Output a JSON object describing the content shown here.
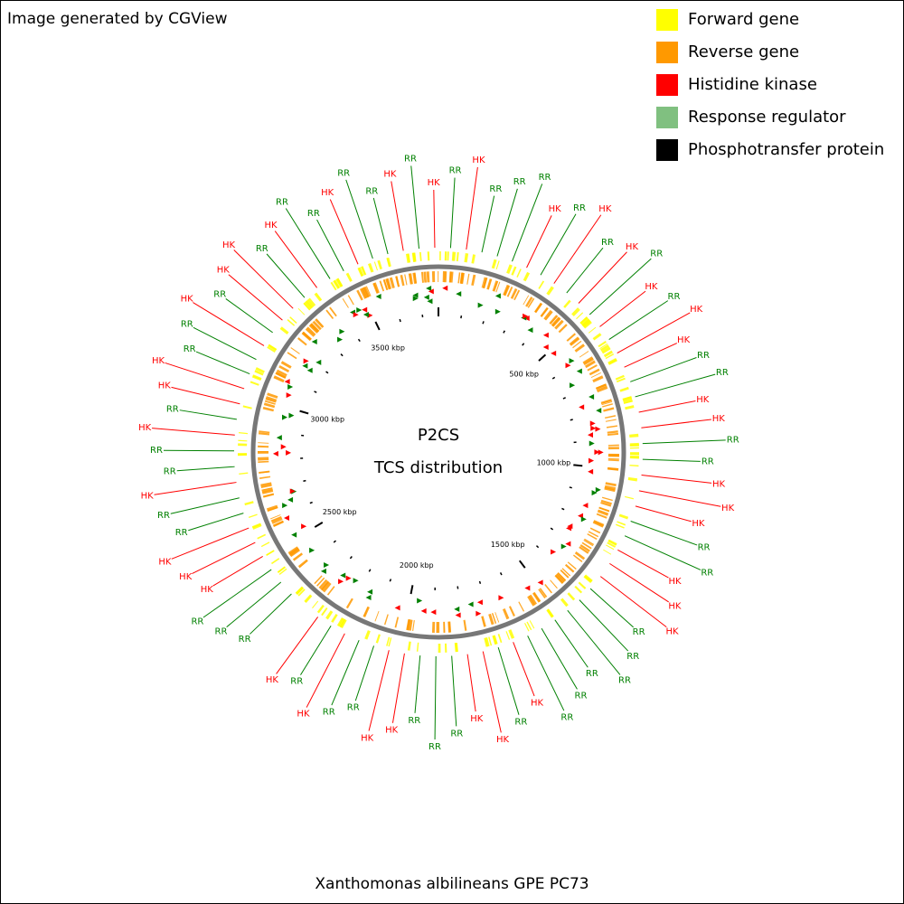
{
  "header": {
    "credit": "Image generated by CGView"
  },
  "legend": [
    {
      "label": "Forward gene",
      "color": "#ffff00"
    },
    {
      "label": "Reverse gene",
      "color": "#ff9900"
    },
    {
      "label": "Histidine kinase",
      "color": "#ff0000"
    },
    {
      "label": "Response regulator",
      "color": "#80c080"
    },
    {
      "label": "Phosphotransfer protein",
      "color": "#000000"
    }
  ],
  "map": {
    "title": "P2CS",
    "subtitle": "TCS distribution",
    "ticks": [
      "500 kbp",
      "1000 kbp",
      "1500 kbp",
      "2000 kbp",
      "2500 kbp",
      "3000 kbp",
      "3500 kbp"
    ],
    "labels": [
      "RR",
      "RR",
      "RR",
      "HK",
      "HK",
      "HK",
      "RR",
      "RR",
      "HK",
      "RR",
      "RR",
      "HK",
      "RR",
      "HK",
      "HK",
      "RR",
      "RR",
      "HK",
      "RR",
      "HK",
      "HK",
      "RR",
      "HK",
      "RR",
      "RR",
      "HK",
      "RR",
      "RR",
      "HK",
      "RR",
      "HK",
      "RR",
      "HK",
      "RR",
      "RR",
      "RR",
      "HK",
      "RR",
      "HK",
      "RR",
      "HK",
      "RR",
      "HK",
      "RR",
      "HK",
      "HK",
      "RR",
      "RR",
      "HK",
      "HK",
      "RR",
      "RR",
      "HK",
      "HK",
      "HK",
      "RR",
      "RR",
      "HK",
      "HK",
      "HK",
      "RR",
      "RR",
      "RR",
      "RR",
      "RR",
      "RR",
      "HK",
      "RR",
      "HK",
      "HK",
      "RR",
      "RR",
      "RR",
      "HK",
      "HK",
      "RR",
      "RR",
      "HK",
      "RR",
      "HK"
    ]
  },
  "footer": {
    "organism": "Xanthomonas albilineans GPE PC73"
  }
}
